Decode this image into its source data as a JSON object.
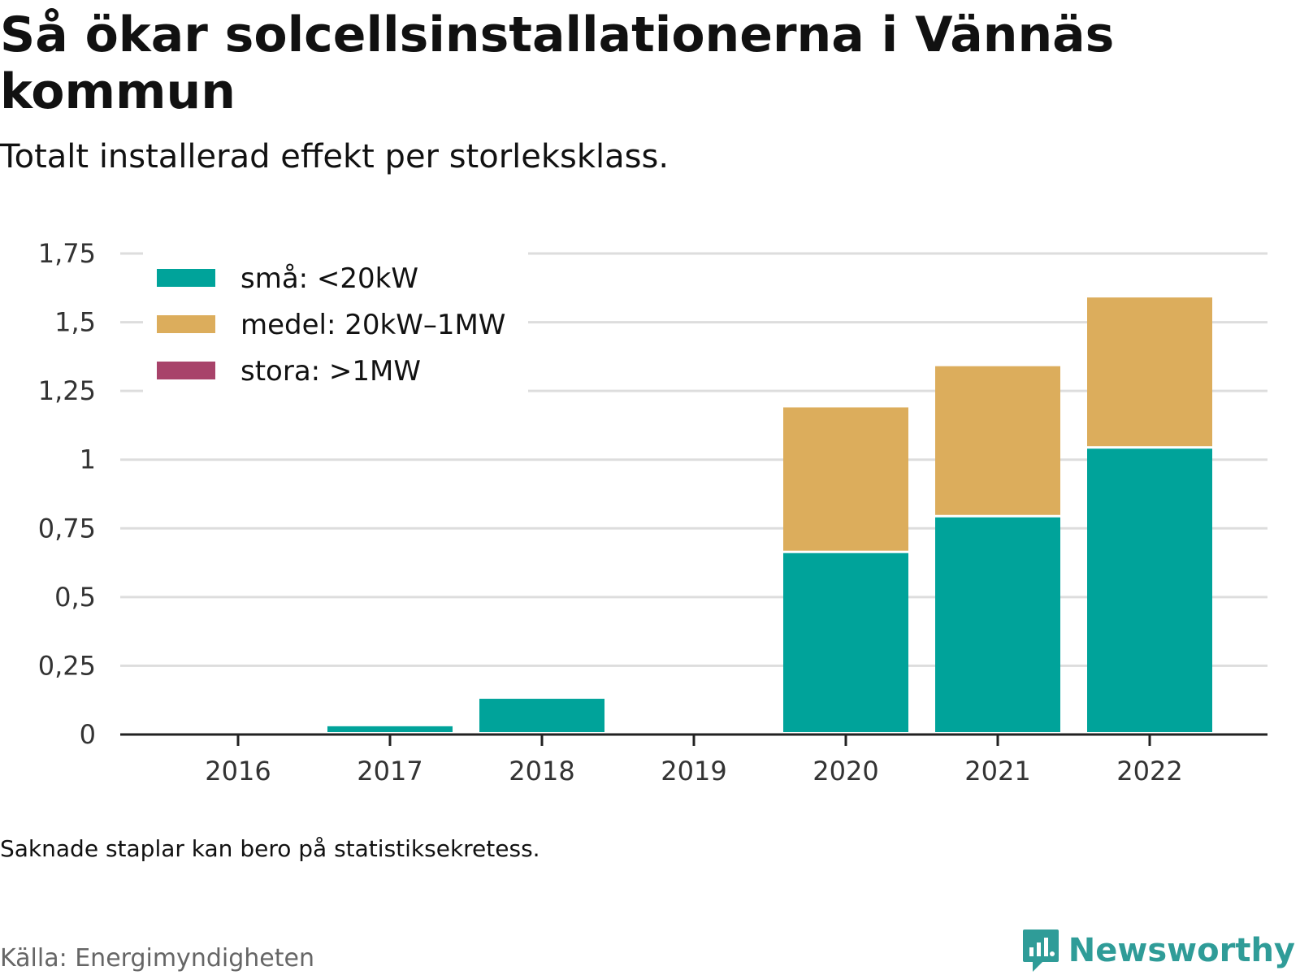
{
  "header": {
    "title": "Så ökar solcellsinstallationerna i Vännäs kommun",
    "subtitle": "Totalt installerad effekt per storleksklass."
  },
  "footer": {
    "note": "Saknade staplar kan bero på statistiksekretess.",
    "source": "Källa: Energimyndigheten",
    "brand": "Newsworthy"
  },
  "chart_data": {
    "type": "bar",
    "stacked": true,
    "categories": [
      "2016",
      "2017",
      "2018",
      "2019",
      "2020",
      "2021",
      "2022"
    ],
    "series": [
      {
        "name": "små: <20kW",
        "color": "#00a39a",
        "values": [
          0,
          0.03,
          0.13,
          0,
          0.66,
          0.79,
          1.04
        ]
      },
      {
        "name": "medel: 20kW–1MW",
        "color": "#dcad5c",
        "values": [
          0,
          0,
          0,
          0,
          0.53,
          0.55,
          0.55
        ]
      },
      {
        "name": "stora: >1MW",
        "color": "#a8436a",
        "values": [
          0,
          0,
          0,
          0,
          0,
          0,
          0
        ]
      }
    ],
    "ylim": [
      0,
      1.75
    ],
    "yticks": [
      0,
      0.25,
      0.5,
      0.75,
      1,
      1.25,
      1.5,
      1.75
    ],
    "ytick_labels": [
      "0",
      "0,25",
      "0,5",
      "0,75",
      "1",
      "1,25",
      "1,5",
      "1,75"
    ],
    "grid": true,
    "legend_position": "top-left",
    "xlabel": "",
    "ylabel": ""
  }
}
